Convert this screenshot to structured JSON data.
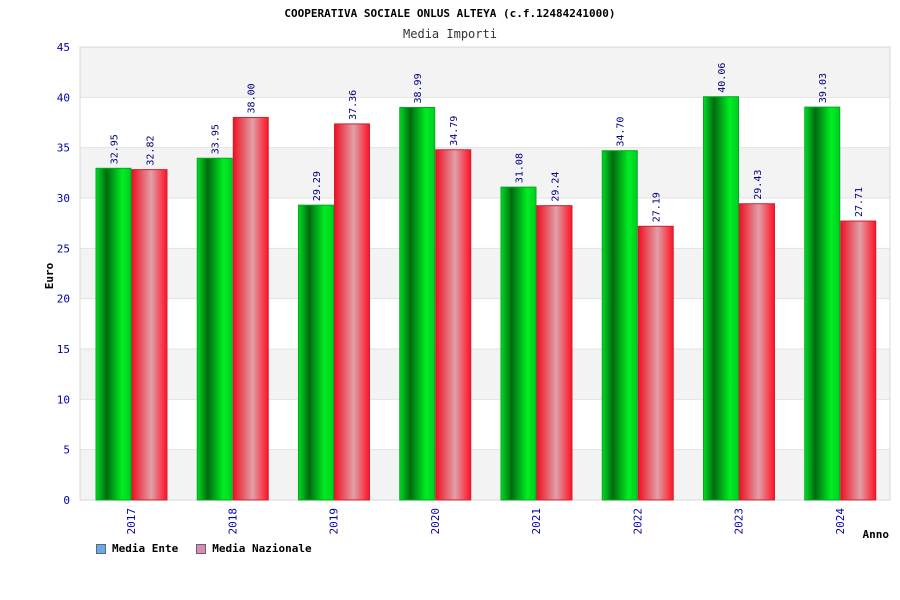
{
  "chart_data": {
    "type": "bar",
    "title": "COOPERATIVA SOCIALE ONLUS ALTEYA (c.f.12484241000)",
    "subtitle": "Media Importi",
    "xlabel": "Anno",
    "ylabel": "Euro",
    "ylim": [
      0,
      45
    ],
    "yticks": [
      "0",
      "5",
      "10",
      "15",
      "20",
      "25",
      "30",
      "35",
      "40",
      "45"
    ],
    "categories": [
      "2017",
      "2018",
      "2019",
      "2020",
      "2021",
      "2022",
      "2023",
      "2024"
    ],
    "series": [
      {
        "name": "Media Ente",
        "values": [
          32.95,
          33.95,
          29.29,
          38.99,
          31.08,
          34.7,
          40.06,
          39.03
        ],
        "labels": [
          "32.95",
          "33.95",
          "29.29",
          "38.99",
          "31.08",
          "34.70",
          "40.06",
          "39.03"
        ],
        "color": "#00cc22",
        "legend_color": "#66aaee"
      },
      {
        "name": "Media Nazionale",
        "values": [
          32.82,
          38.0,
          37.36,
          34.79,
          29.24,
          27.19,
          29.43,
          27.71
        ],
        "labels": [
          "32.82",
          "38.00",
          "37.36",
          "34.79",
          "29.24",
          "27.19",
          "29.43",
          "27.71"
        ],
        "color": "#ee1122",
        "legend_color": "#dd88bb"
      }
    ],
    "grid": true,
    "legend_position": "bottom-left"
  }
}
